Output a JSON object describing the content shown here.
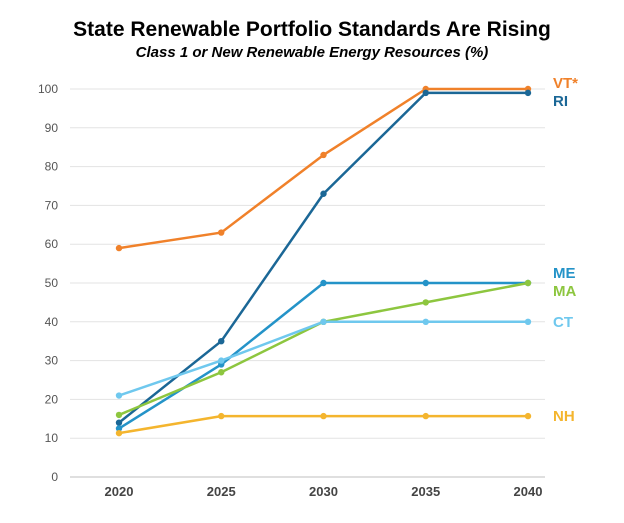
{
  "chart_data": {
    "type": "line",
    "title": "State Renewable Portfolio Standards Are Rising",
    "subtitle": "Class 1 or New Renewable Energy Resources (%)",
    "xlabel": "",
    "ylabel": "",
    "x": [
      2020,
      2025,
      2030,
      2035,
      2040
    ],
    "ylim": [
      0,
      100
    ],
    "yticks": [
      0,
      10,
      20,
      30,
      40,
      50,
      60,
      70,
      80,
      90,
      100
    ],
    "grid": "horizontal",
    "legend": "direct-labels-right",
    "series": [
      {
        "name": "VT*",
        "color": "#F0812A",
        "values": [
          59,
          63,
          83,
          100,
          100
        ]
      },
      {
        "name": "RI",
        "color": "#1B6796",
        "values": [
          14,
          35,
          73,
          99,
          99
        ]
      },
      {
        "name": "ME",
        "color": "#2493C8",
        "values": [
          12.5,
          29,
          50,
          50,
          50
        ]
      },
      {
        "name": "MA",
        "color": "#8DC63F",
        "values": [
          16,
          27,
          40,
          45,
          50
        ]
      },
      {
        "name": "CT",
        "color": "#6FC8EE",
        "values": [
          21,
          30,
          40,
          40,
          40
        ]
      },
      {
        "name": "NH",
        "color": "#F4B52E",
        "values": [
          11.3,
          15.7,
          15.7,
          15.7,
          15.7
        ]
      }
    ]
  }
}
